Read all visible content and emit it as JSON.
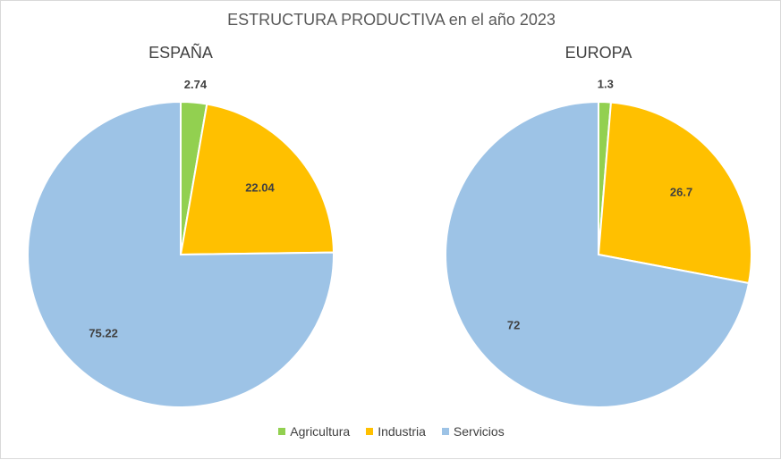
{
  "chart_data": {
    "type": "pie",
    "title": "ESTRUCTURA PRODUCTIVA en el año 2023",
    "categories": [
      "Agricultura",
      "Industria",
      "Servicios"
    ],
    "colors": [
      "#92d050",
      "#ffc000",
      "#9dc3e6"
    ],
    "legend_position": "bottom",
    "pies": [
      {
        "name": "ESPAÑA",
        "values": [
          2.74,
          22.04,
          75.22
        ],
        "labels": [
          "2.74",
          "22.04",
          "75.22"
        ]
      },
      {
        "name": "EUROPA",
        "values": [
          1.3,
          26.7,
          72
        ],
        "labels": [
          "1.3",
          "26.7",
          "72"
        ]
      }
    ]
  }
}
